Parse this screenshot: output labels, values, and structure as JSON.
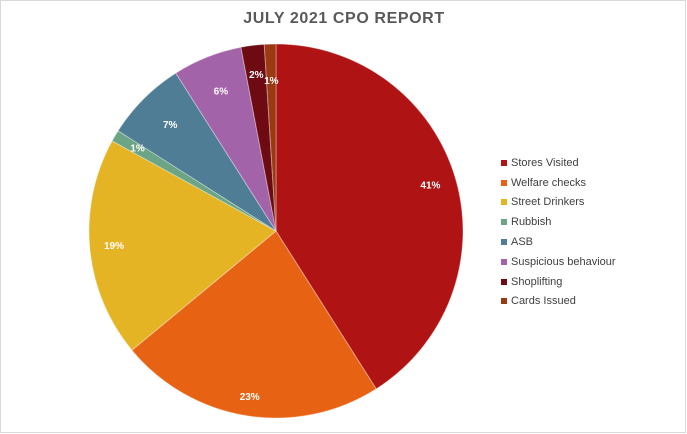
{
  "chart_data": {
    "type": "pie",
    "title": "JULY 2021 CPO REPORT",
    "legend_position": "right",
    "slices": [
      {
        "name": "Stores Visited",
        "value": 41,
        "label": "41%",
        "color": "#B01313"
      },
      {
        "name": "Welfare checks",
        "value": 23,
        "label": "23%",
        "color": "#E86213"
      },
      {
        "name": "Street Drinkers",
        "value": 19,
        "label": "19%",
        "color": "#E5B425"
      },
      {
        "name": "Rubbish",
        "value": 1,
        "label": "1%",
        "color": "#6BA586"
      },
      {
        "name": "ASB",
        "value": 7,
        "label": "7%",
        "color": "#4F7D95"
      },
      {
        "name": "Suspicious behaviour",
        "value": 6,
        "label": "6%",
        "color": "#A363A8"
      },
      {
        "name": "Shoplifting",
        "value": 2,
        "label": "2%",
        "color": "#6E0A12"
      },
      {
        "name": "Cards Issued",
        "value": 1,
        "label": "1%",
        "color": "#9B3A12"
      }
    ]
  }
}
